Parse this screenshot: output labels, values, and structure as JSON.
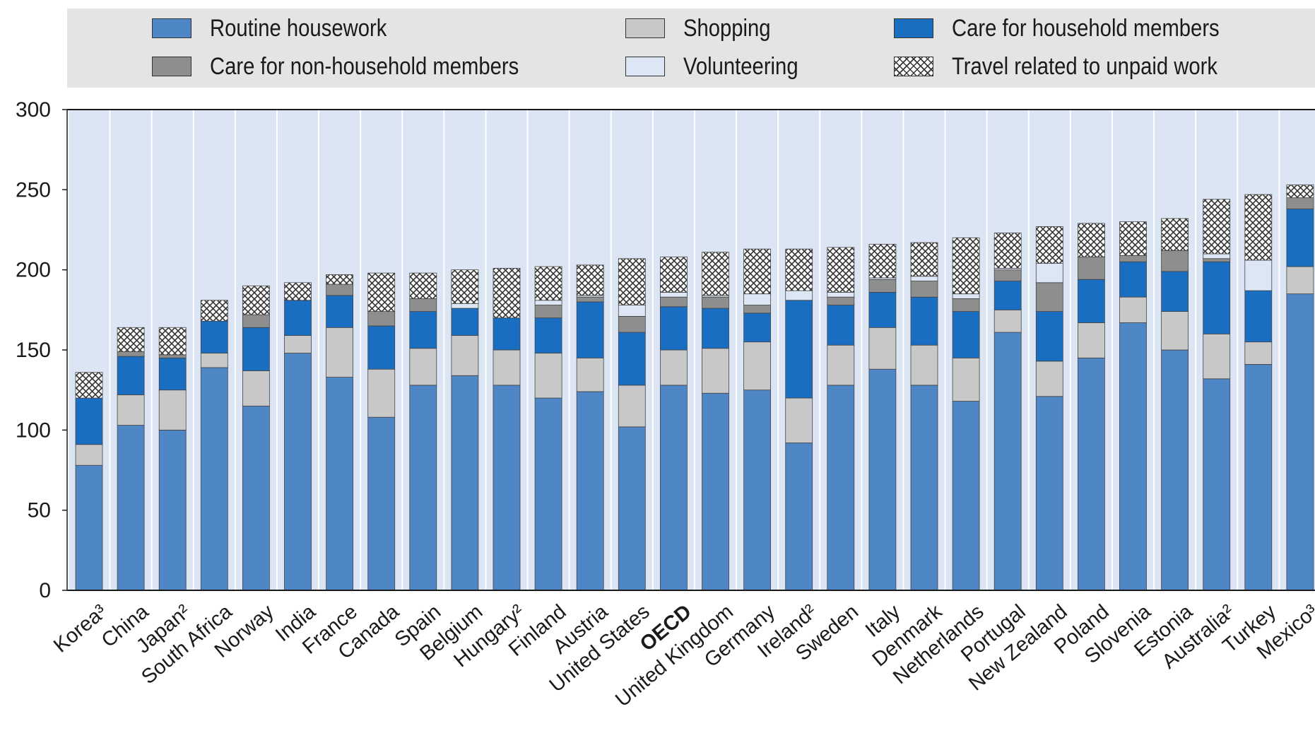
{
  "chart_data": {
    "type": "bar",
    "stacked": true,
    "ylim": [
      0,
      300
    ],
    "yticks": [
      0,
      50,
      100,
      150,
      200,
      250,
      300
    ],
    "grid": "vertical",
    "legend_position": "top",
    "categories": [
      "Korea³",
      "China",
      "Japan²",
      "South Africa",
      "Norway",
      "India",
      "France",
      "Canada",
      "Spain",
      "Belgium",
      "Hungary²",
      "Finland",
      "Austria",
      "United States",
      "OECD",
      "United Kingdom",
      "Germany",
      "Ireland²",
      "Sweden",
      "Italy",
      "Denmark",
      "Netherlands",
      "Portugal",
      "New Zealand",
      "Poland",
      "Slovenia",
      "Estonia",
      "Australia²",
      "Turkey",
      "Mexico³"
    ],
    "highlight_category": "OECD",
    "series": [
      {
        "name": "Routine housework",
        "color": "#4f86c6",
        "pattern": "solid",
        "values": [
          78,
          103,
          100,
          139,
          115,
          148,
          133,
          108,
          128,
          134,
          128,
          120,
          124,
          102,
          128,
          123,
          125,
          92,
          128,
          138,
          128,
          118,
          161,
          121,
          145,
          167,
          150,
          132,
          141,
          185
        ]
      },
      {
        "name": "Shopping",
        "color": "#c8c8c8",
        "pattern": "solid",
        "values": [
          13,
          19,
          25,
          9,
          22,
          11,
          31,
          30,
          23,
          25,
          22,
          28,
          21,
          26,
          22,
          28,
          30,
          28,
          25,
          26,
          25,
          27,
          14,
          22,
          22,
          16,
          24,
          28,
          14,
          17
        ]
      },
      {
        "name": "Care for household members",
        "color": "#1a6ec2",
        "pattern": "solid",
        "values": [
          29,
          24,
          20,
          20,
          27,
          22,
          20,
          27,
          23,
          17,
          20,
          22,
          35,
          33,
          27,
          25,
          18,
          61,
          25,
          22,
          30,
          29,
          18,
          31,
          27,
          22,
          25,
          45,
          32,
          36
        ]
      },
      {
        "name": "Care for non-household members",
        "color": "#8e8e8e",
        "pattern": "solid",
        "values": [
          0,
          3,
          2,
          0,
          8,
          0,
          7,
          9,
          8,
          0,
          0,
          8,
          3,
          10,
          6,
          7,
          5,
          0,
          5,
          8,
          10,
          8,
          7,
          18,
          14,
          4,
          13,
          2,
          0,
          7
        ]
      },
      {
        "name": "Volunteering",
        "color": "#dce6f4",
        "pattern": "solid",
        "values": [
          0,
          0,
          0,
          0,
          0,
          0,
          0,
          0,
          0,
          3,
          0,
          3,
          1,
          7,
          3,
          1,
          7,
          6,
          3,
          1,
          3,
          3,
          1,
          12,
          0,
          0,
          0,
          3,
          19,
          0
        ]
      },
      {
        "name": "Travel related to unpaid work",
        "color": "#ffffff",
        "pattern": "crosshatch",
        "values": [
          16,
          15,
          17,
          13,
          18,
          11,
          6,
          24,
          16,
          21,
          31,
          21,
          19,
          29,
          22,
          27,
          28,
          26,
          28,
          21,
          21,
          35,
          22,
          23,
          21,
          21,
          20,
          34,
          41,
          8
        ]
      }
    ]
  }
}
